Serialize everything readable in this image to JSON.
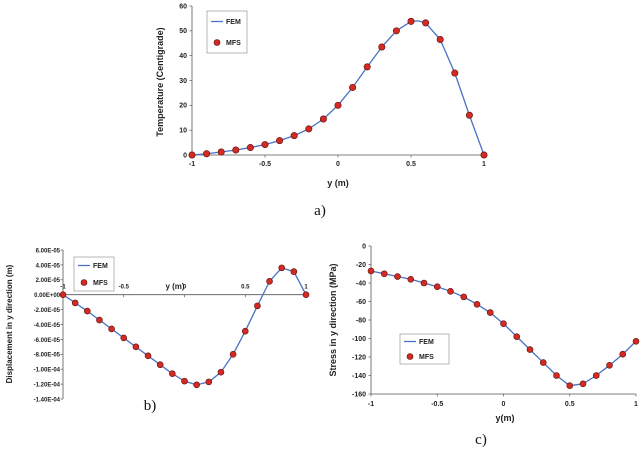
{
  "colors": {
    "line": "#4a72c0",
    "marker_fill": "#d42a22",
    "marker_stroke": "#5a1010",
    "axis": "#555555",
    "legend_border": "#888888"
  },
  "chart_data": [
    {
      "id": "a",
      "type": "line",
      "caption": "a)",
      "xlabel": "y (m)",
      "ylabel": "Temperature (Centigrade)",
      "xlim": [
        -1,
        1
      ],
      "ylim": [
        0,
        60
      ],
      "xticks": [
        "-1",
        "-0.5",
        "0",
        "0.5",
        "1"
      ],
      "yticks": [
        "0",
        "10",
        "20",
        "30",
        "40",
        "50",
        "60"
      ],
      "legend": [
        "FEM",
        "MFS"
      ],
      "series": [
        {
          "name": "FEM",
          "kind": "line",
          "x": [
            -1,
            -0.9,
            -0.8,
            -0.7,
            -0.6,
            -0.5,
            -0.4,
            -0.3,
            -0.2,
            -0.1,
            0,
            0.1,
            0.2,
            0.3,
            0.4,
            0.5,
            0.55,
            0.6,
            0.7,
            0.8,
            0.9,
            1
          ],
          "y": [
            0,
            0.5,
            1.2,
            2.0,
            3.0,
            4.2,
            5.8,
            7.8,
            10.5,
            14.5,
            20.0,
            27.2,
            35.5,
            43.5,
            50.0,
            53.8,
            54.0,
            53.2,
            46.5,
            33.0,
            16.0,
            0
          ]
        },
        {
          "name": "MFS",
          "kind": "markers",
          "x": [
            -1,
            -0.9,
            -0.8,
            -0.7,
            -0.6,
            -0.5,
            -0.4,
            -0.3,
            -0.2,
            -0.1,
            0,
            0.1,
            0.2,
            0.3,
            0.4,
            0.5,
            0.6,
            0.7,
            0.8,
            0.9,
            1
          ],
          "y": [
            0,
            0.5,
            1.2,
            2.0,
            3.0,
            4.2,
            5.8,
            7.8,
            10.5,
            14.5,
            20.0,
            27.2,
            35.5,
            43.5,
            50.0,
            53.8,
            53.2,
            46.5,
            33.0,
            16.0,
            0
          ]
        }
      ]
    },
    {
      "id": "b",
      "type": "line",
      "caption": "b)",
      "xlabel": "y (m)",
      "ylabel": "Displacement in y direction (m)",
      "xlim": [
        -1,
        1
      ],
      "ylim": [
        -0.00014,
        6e-05
      ],
      "xticks": [
        "-1",
        "-0.5",
        "0",
        "0.5",
        "1"
      ],
      "yticks": [
        "-1.40E-04",
        "-1.20E-04",
        "-1.00E-04",
        "-8.00E-05",
        "-6.00E-05",
        "-4.00E-05",
        "-2.00E-05",
        "0.00E+00",
        "2.00E-05",
        "4.00E-05",
        "6.00E-05"
      ],
      "legend": [
        "FEM",
        "MFS"
      ],
      "series": [
        {
          "name": "FEM",
          "kind": "line",
          "x": [
            -1,
            -0.9,
            -0.8,
            -0.7,
            -0.6,
            -0.5,
            -0.4,
            -0.3,
            -0.2,
            -0.1,
            0,
            0.1,
            0.2,
            0.3,
            0.4,
            0.5,
            0.6,
            0.7,
            0.8,
            0.9,
            1
          ],
          "y": [
            0,
            -1.1e-05,
            -2.2e-05,
            -3.4e-05,
            -4.6e-05,
            -5.8e-05,
            -7e-05,
            -8.2e-05,
            -9.4e-05,
            -0.000106,
            -0.000116,
            -0.000121,
            -0.000117,
            -0.000104,
            -8e-05,
            -4.9e-05,
            -1.5e-05,
            1.8e-05,
            3.6e-05,
            3.1e-05,
            0
          ]
        },
        {
          "name": "MFS",
          "kind": "markers",
          "x": [
            -1,
            -0.9,
            -0.8,
            -0.7,
            -0.6,
            -0.5,
            -0.4,
            -0.3,
            -0.2,
            -0.1,
            0,
            0.1,
            0.2,
            0.3,
            0.4,
            0.5,
            0.6,
            0.7,
            0.8,
            0.9,
            1
          ],
          "y": [
            0,
            -1.1e-05,
            -2.2e-05,
            -3.4e-05,
            -4.6e-05,
            -5.8e-05,
            -7e-05,
            -8.2e-05,
            -9.4e-05,
            -0.000106,
            -0.000116,
            -0.000121,
            -0.000117,
            -0.000104,
            -8e-05,
            -4.9e-05,
            -1.5e-05,
            1.8e-05,
            3.6e-05,
            3.1e-05,
            0
          ]
        }
      ]
    },
    {
      "id": "c",
      "type": "line",
      "caption": "c)",
      "xlabel": "y(m)",
      "ylabel": "Stress in y direction (MPa)",
      "xlim": [
        -1,
        1
      ],
      "ylim": [
        -160,
        0
      ],
      "xticks": [
        "-1",
        "-0.5",
        "0",
        "0.5",
        "1"
      ],
      "yticks": [
        "-160",
        "-140",
        "-120",
        "-100",
        "-80",
        "-60",
        "-40",
        "-20",
        "0"
      ],
      "legend": [
        "FEM",
        "MFS"
      ],
      "series": [
        {
          "name": "FEM",
          "kind": "line",
          "x": [
            -1,
            -0.9,
            -0.8,
            -0.7,
            -0.6,
            -0.5,
            -0.4,
            -0.3,
            -0.2,
            -0.1,
            0,
            0.1,
            0.2,
            0.3,
            0.4,
            0.5,
            0.6,
            0.7,
            0.8,
            0.9,
            1
          ],
          "y": [
            -27,
            -30,
            -33,
            -36,
            -40,
            -44,
            -49,
            -55,
            -63,
            -72,
            -84,
            -98,
            -112,
            -126,
            -140,
            -151,
            -149,
            -140,
            -129,
            -117,
            -103
          ]
        },
        {
          "name": "MFS",
          "kind": "markers",
          "x": [
            -1,
            -0.9,
            -0.8,
            -0.7,
            -0.6,
            -0.5,
            -0.4,
            -0.3,
            -0.2,
            -0.1,
            0,
            0.1,
            0.2,
            0.3,
            0.4,
            0.5,
            0.6,
            0.7,
            0.8,
            0.9,
            1
          ],
          "y": [
            -27,
            -30,
            -33,
            -36,
            -40,
            -44,
            -49,
            -55,
            -63,
            -72,
            -84,
            -98,
            -112,
            -126,
            -140,
            -151,
            -149,
            -140,
            -129,
            -117,
            -103
          ]
        }
      ]
    }
  ]
}
